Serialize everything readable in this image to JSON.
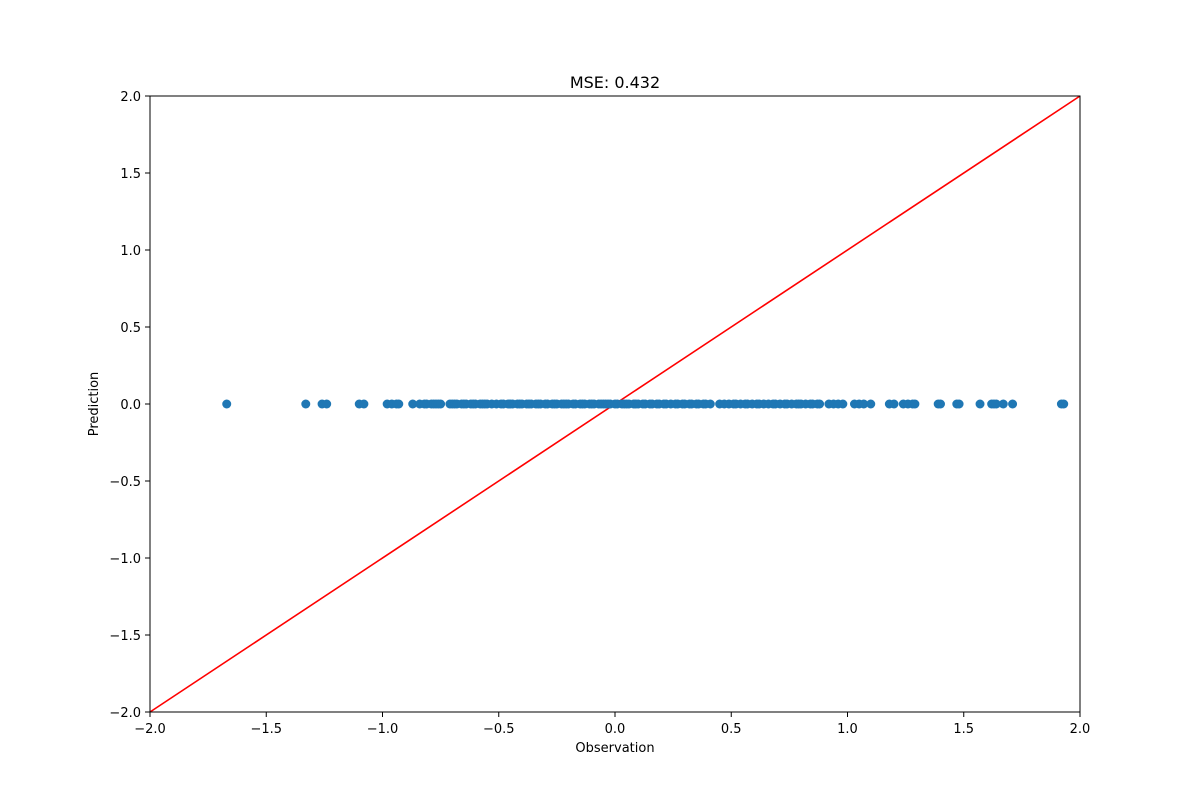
{
  "chart_data": {
    "type": "scatter",
    "title": "MSE: 0.432",
    "xlabel": "Observation",
    "ylabel": "Prediction",
    "xlim": [
      -2.0,
      2.0
    ],
    "ylim": [
      -2.0,
      2.0
    ],
    "grid": false,
    "legend": "none",
    "xticks": [
      -2.0,
      -1.5,
      -1.0,
      -0.5,
      0.0,
      0.5,
      1.0,
      1.5,
      2.0
    ],
    "xtick_labels": [
      "−2.0",
      "−1.5",
      "−1.0",
      "−0.5",
      "0.0",
      "0.5",
      "1.0",
      "1.5",
      "2.0"
    ],
    "yticks": [
      -2.0,
      -1.5,
      -1.0,
      -0.5,
      0.0,
      0.5,
      1.0,
      1.5,
      2.0
    ],
    "ytick_labels": [
      "−2.0",
      "−1.5",
      "−1.0",
      "−0.5",
      "0.0",
      "0.5",
      "1.0",
      "1.5",
      "2.0"
    ],
    "series": [
      {
        "marker_color": "#1f77b4",
        "x": [
          -1.67,
          -1.33,
          -1.26,
          -1.24,
          -1.1,
          -1.08,
          -0.98,
          -0.96,
          -0.94,
          -0.93,
          -0.87,
          -0.84,
          -0.82,
          -0.81,
          -0.79,
          -0.78,
          -0.77,
          -0.76,
          -0.75,
          -0.71,
          -0.7,
          -0.69,
          -0.68,
          -0.66,
          -0.65,
          -0.64,
          -0.62,
          -0.61,
          -0.6,
          -0.58,
          -0.57,
          -0.56,
          -0.55,
          -0.53,
          -0.51,
          -0.49,
          -0.48,
          -0.46,
          -0.45,
          -0.44,
          -0.42,
          -0.41,
          -0.4,
          -0.38,
          -0.37,
          -0.36,
          -0.34,
          -0.33,
          -0.32,
          -0.3,
          -0.29,
          -0.27,
          -0.26,
          -0.25,
          -0.23,
          -0.22,
          -0.21,
          -0.2,
          -0.18,
          -0.17,
          -0.15,
          -0.14,
          -0.13,
          -0.11,
          -0.1,
          -0.09,
          -0.07,
          -0.06,
          -0.05,
          -0.04,
          -0.03,
          -0.02,
          0.0,
          0.01,
          0.03,
          0.04,
          0.05,
          0.06,
          0.08,
          0.09,
          0.1,
          0.12,
          0.13,
          0.15,
          0.16,
          0.18,
          0.19,
          0.21,
          0.22,
          0.24,
          0.26,
          0.27,
          0.29,
          0.3,
          0.32,
          0.33,
          0.35,
          0.36,
          0.38,
          0.39,
          0.41,
          0.45,
          0.47,
          0.49,
          0.51,
          0.52,
          0.54,
          0.56,
          0.57,
          0.59,
          0.61,
          0.62,
          0.64,
          0.66,
          0.68,
          0.69,
          0.71,
          0.73,
          0.74,
          0.76,
          0.78,
          0.79,
          0.8,
          0.82,
          0.84,
          0.85,
          0.87,
          0.88,
          0.92,
          0.94,
          0.96,
          0.98,
          1.03,
          1.05,
          1.07,
          1.1,
          1.18,
          1.2,
          1.24,
          1.26,
          1.28,
          1.29,
          1.39,
          1.4,
          1.47,
          1.48,
          1.57,
          1.62,
          1.63,
          1.64,
          1.67,
          1.71,
          1.92,
          1.93
        ],
        "y_value": 0.0
      }
    ],
    "reference_line": {
      "color": "#ff0000",
      "x": [
        -2.0,
        2.0
      ],
      "y": [
        -2.0,
        2.0
      ]
    }
  }
}
